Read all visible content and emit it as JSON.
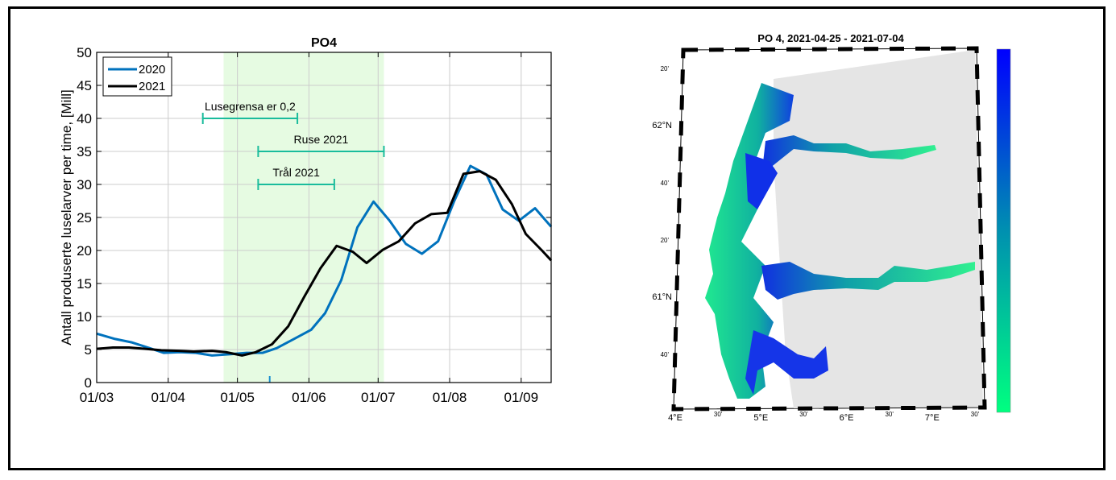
{
  "chart_data": [
    {
      "type": "line",
      "title": "PO4",
      "ylabel": "Antall produserte luselarver per time, [Mill]",
      "xlabel": "",
      "x_unit": "days since 01/03",
      "xlim": [
        0,
        197
      ],
      "ylim": [
        0,
        50
      ],
      "yticks": [
        0,
        5,
        10,
        15,
        20,
        25,
        30,
        35,
        40,
        45,
        50
      ],
      "xticks": [
        {
          "day": 0,
          "label": "01/03"
        },
        {
          "day": 31,
          "label": "01/04"
        },
        {
          "day": 61,
          "label": "01/05"
        },
        {
          "day": 92,
          "label": "01/06"
        },
        {
          "day": 122,
          "label": "01/07"
        },
        {
          "day": 153,
          "label": "01/08"
        },
        {
          "day": 184,
          "label": "01/09"
        }
      ],
      "grid": true,
      "legend_position": "top-left",
      "series": [
        {
          "name": "2020",
          "color": "#0072BD",
          "x": [
            0,
            8,
            15,
            23,
            29,
            36,
            43,
            50,
            58,
            65,
            72,
            78,
            85,
            93,
            99,
            106,
            113,
            120,
            127,
            134,
            141,
            148,
            155,
            162,
            169,
            176,
            183,
            190,
            197
          ],
          "y": [
            7.4,
            6.6,
            6.1,
            5.2,
            4.5,
            4.6,
            4.5,
            4.1,
            4.3,
            4.5,
            4.5,
            5.2,
            6.5,
            8,
            10.5,
            15.5,
            23.5,
            27.4,
            24.5,
            21,
            19.5,
            21.4,
            27.5,
            32.8,
            31.5,
            26.2,
            24.5,
            26.4,
            23.6
          ]
        },
        {
          "name": "2021",
          "color": "#000000",
          "x": [
            0,
            7,
            14,
            21,
            28,
            36,
            42,
            50,
            56,
            63,
            69,
            76,
            83,
            90,
            97,
            104,
            111,
            117,
            124,
            131,
            138,
            145,
            152,
            159,
            166,
            173,
            180,
            186,
            193,
            197
          ],
          "y": [
            5.1,
            5.3,
            5.3,
            5.1,
            4.9,
            4.8,
            4.7,
            4.8,
            4.6,
            4.1,
            4.6,
            5.8,
            8.5,
            13,
            17.3,
            20.7,
            19.8,
            18.1,
            20.1,
            21.4,
            24.1,
            25.5,
            25.7,
            31.6,
            32,
            30.7,
            27,
            22.5,
            20,
            18.5
          ]
        }
      ],
      "shaded_period": {
        "from": 55,
        "to": 124.5,
        "color": "#e6fbe2"
      },
      "intervals": [
        {
          "label": "Lusegrensa er 0,2",
          "from": 46,
          "to": 87,
          "y": 40
        },
        {
          "label": "Ruse 2021",
          "from": 70,
          "to": 124.5,
          "y": 35
        },
        {
          "label": "Trål 2021",
          "from": 70,
          "to": 103,
          "y": 30
        }
      ],
      "interval_color": "#1abc9c",
      "marker_day": 75,
      "marker_color": "#1a8fd0"
    }
  ],
  "map": {
    "title": "PO 4, 2021-04-25 - 2021-07-04",
    "lat_labels": [
      {
        "label": "20'",
        "lat": 62.333
      },
      {
        "label": "62°N",
        "lat": 62.0
      },
      {
        "label": "40'",
        "lat": 61.667
      },
      {
        "label": "20'",
        "lat": 61.333
      },
      {
        "label": "61°N",
        "lat": 61.0
      },
      {
        "label": "40'",
        "lat": 60.667
      }
    ],
    "lon_labels": [
      {
        "label": "4°E",
        "lon": 4.0
      },
      {
        "label": "30'",
        "lon": 4.5
      },
      {
        "label": "5°E",
        "lon": 5.0
      },
      {
        "label": "30'",
        "lon": 5.5
      },
      {
        "label": "6°E",
        "lon": 6.0
      },
      {
        "label": "30'",
        "lon": 6.5
      },
      {
        "label": "7°E",
        "lon": 7.0
      },
      {
        "label": "30'",
        "lon": 7.5
      }
    ],
    "colorbar": {
      "top_color": "#0000ff",
      "mid_color": "#0090b0",
      "bottom_color": "#00ff80"
    },
    "land_color": "#e5e5e5"
  }
}
